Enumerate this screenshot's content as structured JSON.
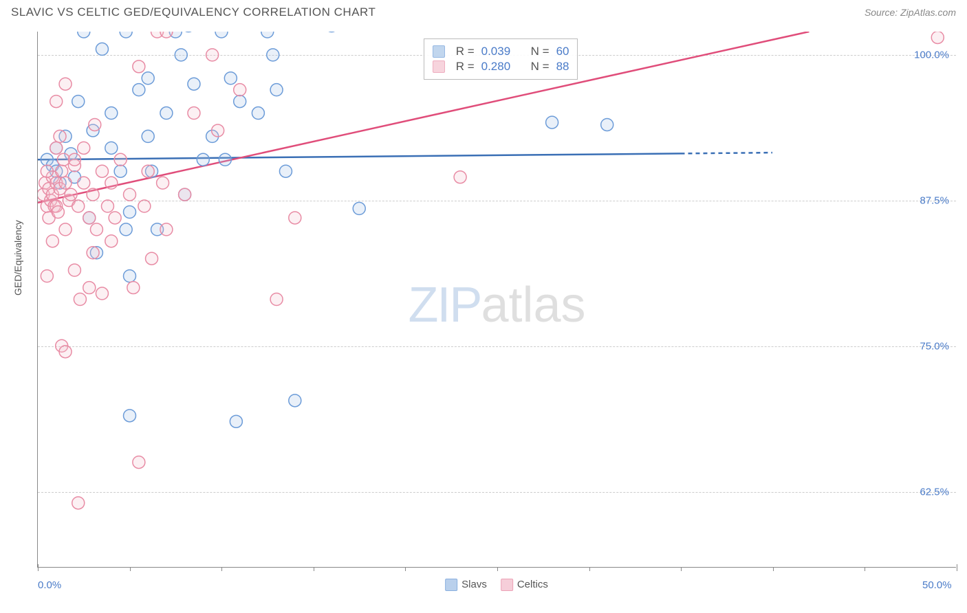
{
  "title": "SLAVIC VS CELTIC GED/EQUIVALENCY CORRELATION CHART",
  "source": "Source: ZipAtlas.com",
  "ylabel": "GED/Equivalency",
  "watermark_zip": "ZIP",
  "watermark_atlas": "atlas",
  "chart": {
    "type": "scatter",
    "xlim": [
      0,
      50
    ],
    "ylim": [
      56,
      102
    ],
    "xticks_major": [
      0,
      50
    ],
    "xticks_minor": [
      5,
      10,
      15,
      20,
      25,
      30,
      35,
      40,
      45
    ],
    "yticks": [
      62.5,
      75.0,
      87.5,
      100.0
    ],
    "ytick_labels": [
      "62.5%",
      "75.0%",
      "87.5%",
      "100.0%"
    ],
    "xtick_labels": {
      "0": "0.0%",
      "50": "50.0%"
    },
    "background_color": "#ffffff",
    "grid_color": "#cccccc",
    "axis_color": "#888888",
    "marker_radius": 9,
    "marker_stroke_width": 1.5,
    "marker_fill_opacity": 0.25,
    "series": [
      {
        "name": "Slavs",
        "color_stroke": "#6b9bd8",
        "color_fill": "#a8c5e8",
        "r_label": "R =",
        "r_value": "0.039",
        "n_label": "N =",
        "n_value": "60",
        "regression": {
          "x1": 0,
          "y1": 91.0,
          "x2": 40,
          "y2": 91.6,
          "solid_until_x": 35,
          "color": "#3a6fb5",
          "width": 2.5
        },
        "points": [
          [
            0.5,
            91
          ],
          [
            0.8,
            90.5
          ],
          [
            1,
            92
          ],
          [
            1.2,
            89
          ],
          [
            1.5,
            93
          ],
          [
            1,
            90
          ],
          [
            1.8,
            91.5
          ],
          [
            2,
            89.5
          ],
          [
            2.2,
            96
          ],
          [
            2.5,
            102
          ],
          [
            2.8,
            86
          ],
          [
            3,
            93.5
          ],
          [
            3.5,
            100.5
          ],
          [
            3.2,
            83
          ],
          [
            4,
            95
          ],
          [
            4.5,
            90
          ],
          [
            4,
            92
          ],
          [
            4.8,
            102
          ],
          [
            5,
            86.5
          ],
          [
            5,
            81
          ],
          [
            5.5,
            97
          ],
          [
            5,
            69
          ],
          [
            4.8,
            85
          ],
          [
            6,
            93
          ],
          [
            6,
            98
          ],
          [
            6.5,
            85
          ],
          [
            6.2,
            90
          ],
          [
            7,
            95
          ],
          [
            7.5,
            102
          ],
          [
            7.8,
            100
          ],
          [
            8,
            88
          ],
          [
            8.2,
            102.5
          ],
          [
            8.5,
            97.5
          ],
          [
            9,
            91
          ],
          [
            9.5,
            93
          ],
          [
            10,
            102
          ],
          [
            10.5,
            98
          ],
          [
            10.2,
            91
          ],
          [
            10.8,
            68.5
          ],
          [
            11,
            96
          ],
          [
            12,
            95
          ],
          [
            12.5,
            102
          ],
          [
            12.8,
            100
          ],
          [
            13,
            97
          ],
          [
            13.5,
            90
          ],
          [
            14,
            70.3
          ],
          [
            16,
            102.5
          ],
          [
            17.5,
            86.8
          ],
          [
            28,
            94.2
          ],
          [
            31,
            94
          ]
        ]
      },
      {
        "name": "Celtics",
        "color_stroke": "#e88ba4",
        "color_fill": "#f5c2d0",
        "r_label": "R =",
        "r_value": "0.280",
        "n_label": "N =",
        "n_value": "88",
        "regression": {
          "x1": 0,
          "y1": 87.3,
          "x2": 42,
          "y2": 102,
          "solid_until_x": 42,
          "color": "#e04d7a",
          "width": 2.5
        },
        "points": [
          [
            0.3,
            88
          ],
          [
            0.5,
            87
          ],
          [
            0.4,
            89
          ],
          [
            0.6,
            88.5
          ],
          [
            0.7,
            87.5
          ],
          [
            0.8,
            89.5
          ],
          [
            0.5,
            90
          ],
          [
            0.9,
            87
          ],
          [
            0.6,
            86
          ],
          [
            0.8,
            88
          ],
          [
            1,
            89
          ],
          [
            1,
            87
          ],
          [
            1.2,
            88.5
          ],
          [
            1.3,
            90
          ],
          [
            1.1,
            86.5
          ],
          [
            1.5,
            89
          ],
          [
            1.4,
            91
          ],
          [
            1.7,
            87.5
          ],
          [
            1,
            92
          ],
          [
            1.8,
            88
          ],
          [
            1.5,
            85
          ],
          [
            2,
            90.5
          ],
          [
            2.2,
            87
          ],
          [
            1.2,
            93
          ],
          [
            2.5,
            89
          ],
          [
            1,
            96
          ],
          [
            2.8,
            86
          ],
          [
            2,
            91
          ],
          [
            3,
            88
          ],
          [
            2.5,
            92
          ],
          [
            3.2,
            85
          ],
          [
            1.5,
            97.5
          ],
          [
            2.3,
            79
          ],
          [
            0.8,
            84
          ],
          [
            0.5,
            81
          ],
          [
            1.3,
            75
          ],
          [
            1.5,
            74.5
          ],
          [
            2,
            81.5
          ],
          [
            3.5,
            90
          ],
          [
            3.1,
            94
          ],
          [
            3.8,
            87
          ],
          [
            3,
            83
          ],
          [
            4,
            89
          ],
          [
            4.2,
            86
          ],
          [
            2.8,
            80
          ],
          [
            4.5,
            91
          ],
          [
            3.5,
            79.5
          ],
          [
            5,
            88
          ],
          [
            5.5,
            99
          ],
          [
            2.2,
            61.5
          ],
          [
            4,
            84
          ],
          [
            5.2,
            80
          ],
          [
            6,
            90
          ],
          [
            5.8,
            87
          ],
          [
            5.5,
            65
          ],
          [
            6.5,
            102
          ],
          [
            6.8,
            89
          ],
          [
            7,
            85
          ],
          [
            6.2,
            82.5
          ],
          [
            8,
            88
          ],
          [
            8.5,
            95
          ],
          [
            9.5,
            100
          ],
          [
            7,
            102
          ],
          [
            9.8,
            93.5
          ],
          [
            11,
            97
          ],
          [
            13,
            79
          ],
          [
            14,
            86
          ],
          [
            23,
            89.5
          ],
          [
            49,
            101.5
          ]
        ]
      }
    ]
  },
  "bottom_legend": [
    {
      "label": "Slavs",
      "stroke": "#6b9bd8",
      "fill": "#a8c5e8"
    },
    {
      "label": "Celtics",
      "stroke": "#e88ba4",
      "fill": "#f5c2d0"
    }
  ]
}
